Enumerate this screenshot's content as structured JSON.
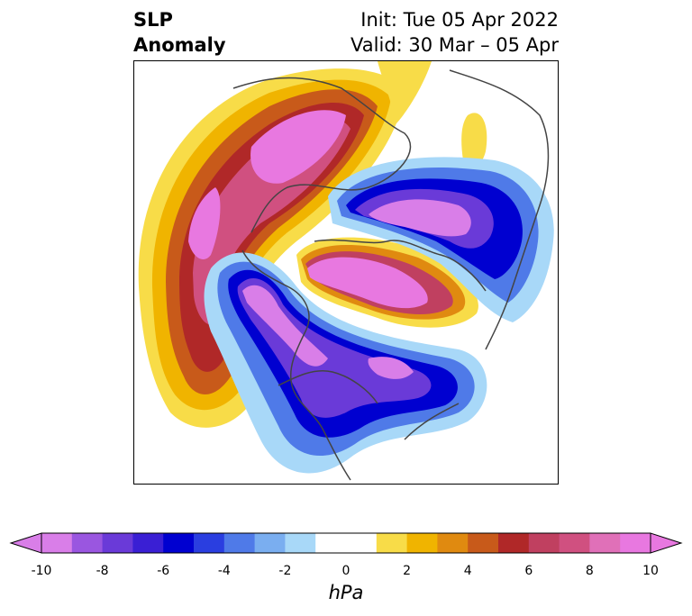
{
  "title": {
    "variable_line1": "SLP",
    "variable_line2": "Anomaly",
    "init": "Init: Tue 05 Apr 2022",
    "valid": "Valid: 30 Mar – 05 Apr"
  },
  "colorbar": {
    "unit": "hPa",
    "min": -10,
    "max": 10,
    "step": 1,
    "ticks": [
      "-10",
      "-8",
      "-6",
      "-4",
      "-2",
      "0",
      "2",
      "4",
      "6",
      "8",
      "10"
    ],
    "colors": [
      "#d97ee8",
      "#9a56e0",
      "#6a3ad8",
      "#3a1fd4",
      "#0000d0",
      "#2a3ee0",
      "#4f7ae8",
      "#7aaef0",
      "#a8d8f8",
      "#ffffff",
      "#ffffff",
      "#f8dc48",
      "#f0b400",
      "#e08a10",
      "#c85a1a",
      "#b02828",
      "#c04060",
      "#d05080",
      "#e070b8",
      "#e878e0"
    ]
  },
  "map": {
    "projection": "polar-stereographic",
    "region": "Northern Hemisphere",
    "features": [
      "positive-anomaly-siberia",
      "positive-anomaly-north-pacific",
      "positive-anomaly-arctic",
      "negative-anomaly-europe",
      "negative-anomaly-canada",
      "negative-anomaly-atlantic"
    ]
  }
}
